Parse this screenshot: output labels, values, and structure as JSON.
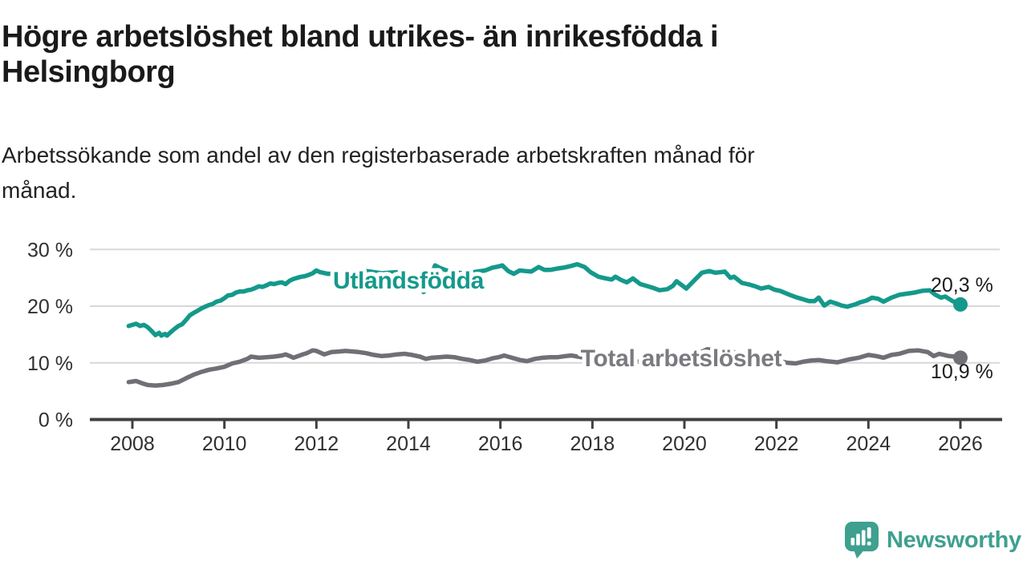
{
  "header": {
    "title": "Högre arbetslöshet bland utrikes- än inrikesfödda i Helsingborg",
    "title_lines": [
      "Högre arbetslöshet bland utrikes- än inrikesfödda i",
      "Helsingborg"
    ],
    "subtitle": "Arbetssökande som andel av den registerbaserade arbetskraften månad för månad.",
    "subtitle_lines": [
      "Arbetssökande som andel av den registerbaserade arbetskraften månad för",
      "månad."
    ]
  },
  "footer": {
    "brand": "Newsworthy",
    "logo_icon": "newsworthy-speech-bubble-chart-icon",
    "brand_color": "#3fa08f"
  },
  "chart_data": {
    "type": "line",
    "title": "Högre arbetslöshet bland utrikes- än inrikesfödda i Helsingborg",
    "subtitle": "Arbetssökande som andel av den registerbaserade arbetskraften månad för månad.",
    "unit": "%",
    "grid": "horizontal",
    "xlim": [
      2007.05,
      2026.9
    ],
    "ylim": [
      0,
      32
    ],
    "y_ticks": [
      {
        "value": 0,
        "label": "0 %"
      },
      {
        "value": 10,
        "label": "10 %"
      },
      {
        "value": 20,
        "label": "20 %"
      },
      {
        "value": 30,
        "label": "30 %"
      }
    ],
    "x_ticks": [
      {
        "value": 2008,
        "label": "2008"
      },
      {
        "value": 2010,
        "label": "2010"
      },
      {
        "value": 2012,
        "label": "2012"
      },
      {
        "value": 2014,
        "label": "2014"
      },
      {
        "value": 2016,
        "label": "2016"
      },
      {
        "value": 2018,
        "label": "2018"
      },
      {
        "value": 2020,
        "label": "2020"
      },
      {
        "value": 2022,
        "label": "2022"
      },
      {
        "value": 2024,
        "label": "2024"
      },
      {
        "value": 2026,
        "label": "2026"
      }
    ],
    "series": [
      {
        "name": "Utlandsfödda",
        "label": "Utlandsfödda",
        "color": "#14998b",
        "label_color": "#14998b",
        "end_value": 20.3,
        "end_label": "20,3 %",
        "points": [
          [
            2007.92,
            16.5
          ],
          [
            2008.0,
            16.7
          ],
          [
            2008.08,
            16.9
          ],
          [
            2008.17,
            16.5
          ],
          [
            2008.25,
            16.7
          ],
          [
            2008.33,
            16.3
          ],
          [
            2008.42,
            15.6
          ],
          [
            2008.5,
            14.9
          ],
          [
            2008.58,
            15.3
          ],
          [
            2008.63,
            14.8
          ],
          [
            2008.71,
            15.1
          ],
          [
            2008.75,
            14.8
          ],
          [
            2008.83,
            15.4
          ],
          [
            2008.92,
            16.0
          ],
          [
            2009.0,
            16.5
          ],
          [
            2009.08,
            16.8
          ],
          [
            2009.17,
            17.6
          ],
          [
            2009.25,
            18.4
          ],
          [
            2009.33,
            18.8
          ],
          [
            2009.42,
            19.2
          ],
          [
            2009.5,
            19.6
          ],
          [
            2009.58,
            19.9
          ],
          [
            2009.67,
            20.2
          ],
          [
            2009.75,
            20.4
          ],
          [
            2009.83,
            20.8
          ],
          [
            2009.92,
            21.0
          ],
          [
            2010.0,
            21.4
          ],
          [
            2010.08,
            21.9
          ],
          [
            2010.17,
            22.0
          ],
          [
            2010.25,
            22.4
          ],
          [
            2010.33,
            22.6
          ],
          [
            2010.42,
            22.6
          ],
          [
            2010.5,
            22.8
          ],
          [
            2010.58,
            22.9
          ],
          [
            2010.67,
            23.2
          ],
          [
            2010.75,
            23.5
          ],
          [
            2010.83,
            23.4
          ],
          [
            2010.92,
            23.7
          ],
          [
            2011.0,
            24.0
          ],
          [
            2011.08,
            23.9
          ],
          [
            2011.17,
            24.1
          ],
          [
            2011.25,
            24.2
          ],
          [
            2011.33,
            23.9
          ],
          [
            2011.42,
            24.5
          ],
          [
            2011.5,
            24.8
          ],
          [
            2011.58,
            25.0
          ],
          [
            2011.67,
            25.2
          ],
          [
            2011.75,
            25.3
          ],
          [
            2011.83,
            25.5
          ],
          [
            2011.92,
            25.8
          ],
          [
            2012.0,
            26.3
          ],
          [
            2012.08,
            26.0
          ],
          [
            2012.25,
            25.7
          ],
          [
            2012.42,
            25.8
          ],
          [
            2012.58,
            25.9
          ],
          [
            2012.75,
            26.0
          ],
          [
            2012.92,
            26.1
          ],
          [
            2013.08,
            26.2
          ],
          [
            2013.25,
            26.0
          ],
          [
            2013.42,
            25.8
          ],
          [
            2013.58,
            25.9
          ],
          [
            2013.75,
            26.0
          ],
          [
            2013.92,
            25.7
          ],
          [
            2014.08,
            25.3
          ],
          [
            2014.25,
            23.5
          ],
          [
            2014.33,
            22.5
          ],
          [
            2014.42,
            23.3
          ],
          [
            2014.5,
            25.6
          ],
          [
            2014.58,
            27.2
          ],
          [
            2014.67,
            26.8
          ],
          [
            2014.83,
            26.3
          ],
          [
            2015.0,
            26.0
          ],
          [
            2015.17,
            25.8
          ],
          [
            2015.33,
            25.9
          ],
          [
            2015.5,
            26.1
          ],
          [
            2015.67,
            26.3
          ],
          [
            2015.83,
            26.8
          ],
          [
            2015.96,
            27.0
          ],
          [
            2016.04,
            27.2
          ],
          [
            2016.17,
            26.2
          ],
          [
            2016.29,
            25.7
          ],
          [
            2016.42,
            26.3
          ],
          [
            2016.54,
            26.2
          ],
          [
            2016.67,
            26.1
          ],
          [
            2016.83,
            26.9
          ],
          [
            2016.96,
            26.4
          ],
          [
            2017.08,
            26.4
          ],
          [
            2017.21,
            26.6
          ],
          [
            2017.38,
            26.8
          ],
          [
            2017.54,
            27.1
          ],
          [
            2017.67,
            27.4
          ],
          [
            2017.83,
            26.9
          ],
          [
            2017.96,
            26.0
          ],
          [
            2018.13,
            25.2
          ],
          [
            2018.29,
            24.9
          ],
          [
            2018.42,
            24.7
          ],
          [
            2018.5,
            25.2
          ],
          [
            2018.63,
            24.6
          ],
          [
            2018.75,
            24.2
          ],
          [
            2018.88,
            24.9
          ],
          [
            2019.04,
            23.9
          ],
          [
            2019.17,
            23.6
          ],
          [
            2019.33,
            23.2
          ],
          [
            2019.46,
            22.8
          ],
          [
            2019.63,
            23.0
          ],
          [
            2019.75,
            23.6
          ],
          [
            2019.83,
            24.4
          ],
          [
            2019.96,
            23.6
          ],
          [
            2020.04,
            23.1
          ],
          [
            2020.21,
            24.5
          ],
          [
            2020.38,
            25.9
          ],
          [
            2020.54,
            26.2
          ],
          [
            2020.67,
            25.9
          ],
          [
            2020.79,
            26.0
          ],
          [
            2020.88,
            26.1
          ],
          [
            2021.0,
            25.0
          ],
          [
            2021.08,
            25.2
          ],
          [
            2021.25,
            24.1
          ],
          [
            2021.42,
            23.8
          ],
          [
            2021.54,
            23.5
          ],
          [
            2021.67,
            23.1
          ],
          [
            2021.83,
            23.4
          ],
          [
            2021.96,
            22.9
          ],
          [
            2022.08,
            22.7
          ],
          [
            2022.29,
            22.0
          ],
          [
            2022.42,
            21.6
          ],
          [
            2022.54,
            21.3
          ],
          [
            2022.71,
            20.9
          ],
          [
            2022.83,
            20.9
          ],
          [
            2022.92,
            21.5
          ],
          [
            2023.04,
            20.1
          ],
          [
            2023.17,
            20.8
          ],
          [
            2023.29,
            20.5
          ],
          [
            2023.42,
            20.1
          ],
          [
            2023.54,
            19.9
          ],
          [
            2023.71,
            20.3
          ],
          [
            2023.83,
            20.7
          ],
          [
            2023.96,
            21.0
          ],
          [
            2024.08,
            21.5
          ],
          [
            2024.21,
            21.3
          ],
          [
            2024.33,
            20.8
          ],
          [
            2024.5,
            21.5
          ],
          [
            2024.67,
            22.0
          ],
          [
            2024.83,
            22.2
          ],
          [
            2025.0,
            22.4
          ],
          [
            2025.17,
            22.7
          ],
          [
            2025.33,
            22.8
          ],
          [
            2025.46,
            22.0
          ],
          [
            2025.58,
            21.5
          ],
          [
            2025.67,
            21.7
          ],
          [
            2025.83,
            20.9
          ],
          [
            2025.92,
            20.6
          ],
          [
            2026.0,
            20.3
          ]
        ]
      },
      {
        "name": "Total arbetslöshet",
        "label": "Total arbetslöshet",
        "color": "#706f75",
        "label_color": "#7b7a80",
        "end_value": 10.9,
        "end_label": "10,9 %",
        "points": [
          [
            2007.92,
            6.6
          ],
          [
            2008.0,
            6.7
          ],
          [
            2008.08,
            6.8
          ],
          [
            2008.21,
            6.4
          ],
          [
            2008.33,
            6.1
          ],
          [
            2008.5,
            6.0
          ],
          [
            2008.67,
            6.1
          ],
          [
            2008.83,
            6.3
          ],
          [
            2009.0,
            6.6
          ],
          [
            2009.17,
            7.3
          ],
          [
            2009.33,
            7.9
          ],
          [
            2009.5,
            8.4
          ],
          [
            2009.67,
            8.8
          ],
          [
            2009.83,
            9.0
          ],
          [
            2010.0,
            9.3
          ],
          [
            2010.17,
            9.9
          ],
          [
            2010.33,
            10.2
          ],
          [
            2010.5,
            10.7
          ],
          [
            2010.58,
            11.1
          ],
          [
            2010.75,
            10.9
          ],
          [
            2010.92,
            11.0
          ],
          [
            2011.08,
            11.1
          ],
          [
            2011.25,
            11.3
          ],
          [
            2011.33,
            11.5
          ],
          [
            2011.42,
            11.2
          ],
          [
            2011.5,
            10.9
          ],
          [
            2011.67,
            11.4
          ],
          [
            2011.79,
            11.7
          ],
          [
            2011.92,
            12.2
          ],
          [
            2012.0,
            12.1
          ],
          [
            2012.17,
            11.5
          ],
          [
            2012.33,
            11.9
          ],
          [
            2012.5,
            12.0
          ],
          [
            2012.63,
            12.1
          ],
          [
            2012.79,
            12.0
          ],
          [
            2012.92,
            11.9
          ],
          [
            2013.08,
            11.7
          ],
          [
            2013.25,
            11.4
          ],
          [
            2013.42,
            11.2
          ],
          [
            2013.58,
            11.3
          ],
          [
            2013.75,
            11.5
          ],
          [
            2013.92,
            11.6
          ],
          [
            2014.08,
            11.4
          ],
          [
            2014.25,
            11.1
          ],
          [
            2014.38,
            10.7
          ],
          [
            2014.5,
            10.9
          ],
          [
            2014.67,
            11.0
          ],
          [
            2014.83,
            11.1
          ],
          [
            2015.0,
            11.0
          ],
          [
            2015.17,
            10.7
          ],
          [
            2015.33,
            10.5
          ],
          [
            2015.5,
            10.2
          ],
          [
            2015.67,
            10.4
          ],
          [
            2015.83,
            10.8
          ],
          [
            2015.96,
            11.0
          ],
          [
            2016.08,
            11.3
          ],
          [
            2016.25,
            10.9
          ],
          [
            2016.42,
            10.5
          ],
          [
            2016.58,
            10.3
          ],
          [
            2016.75,
            10.7
          ],
          [
            2016.92,
            10.9
          ],
          [
            2017.08,
            11.0
          ],
          [
            2017.25,
            11.0
          ],
          [
            2017.42,
            11.2
          ],
          [
            2017.54,
            11.3
          ],
          [
            2017.75,
            11.0
          ],
          [
            2018.0,
            10.8
          ],
          [
            2018.25,
            10.5
          ],
          [
            2018.5,
            10.3
          ],
          [
            2018.75,
            10.4
          ],
          [
            2019.0,
            10.2
          ],
          [
            2019.25,
            10.0
          ],
          [
            2019.5,
            9.9
          ],
          [
            2019.75,
            10.0
          ],
          [
            2020.0,
            10.2
          ],
          [
            2020.25,
            11.5
          ],
          [
            2020.5,
            12.4
          ],
          [
            2020.75,
            12.2
          ],
          [
            2021.0,
            12.0
          ],
          [
            2021.25,
            11.6
          ],
          [
            2021.5,
            11.2
          ],
          [
            2021.75,
            10.8
          ],
          [
            2022.0,
            10.4
          ],
          [
            2022.25,
            10.0
          ],
          [
            2022.42,
            9.9
          ],
          [
            2022.58,
            10.2
          ],
          [
            2022.75,
            10.4
          ],
          [
            2022.92,
            10.5
          ],
          [
            2023.08,
            10.3
          ],
          [
            2023.33,
            10.1
          ],
          [
            2023.58,
            10.6
          ],
          [
            2023.79,
            10.9
          ],
          [
            2024.0,
            11.4
          ],
          [
            2024.17,
            11.2
          ],
          [
            2024.33,
            10.9
          ],
          [
            2024.5,
            11.4
          ],
          [
            2024.67,
            11.6
          ],
          [
            2024.88,
            12.1
          ],
          [
            2025.08,
            12.2
          ],
          [
            2025.29,
            11.9
          ],
          [
            2025.42,
            11.2
          ],
          [
            2025.54,
            11.6
          ],
          [
            2025.75,
            11.2
          ],
          [
            2025.88,
            11.1
          ],
          [
            2026.0,
            10.9
          ]
        ]
      }
    ]
  }
}
